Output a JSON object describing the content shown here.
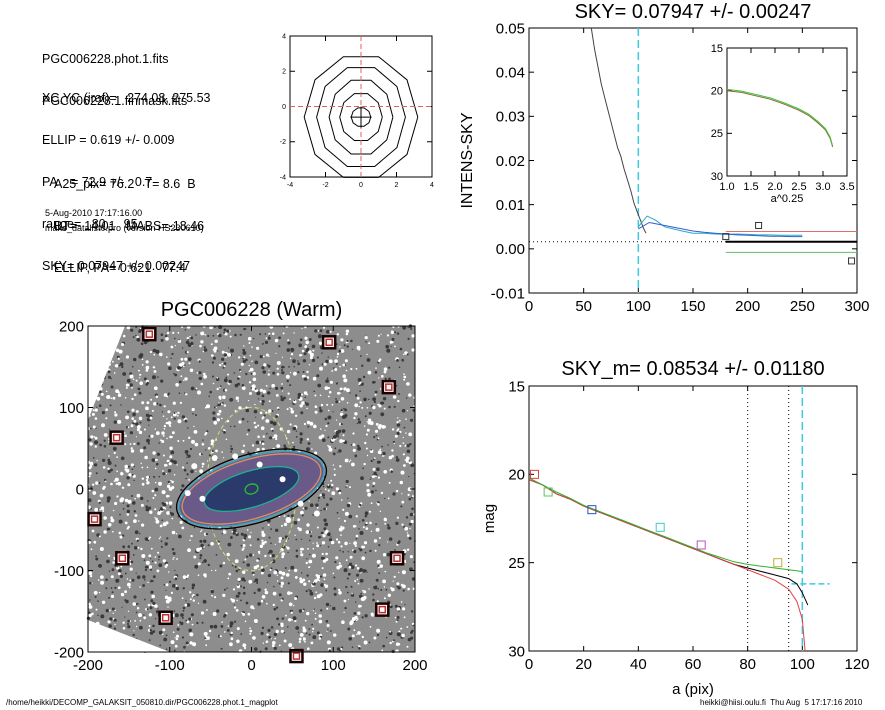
{
  "info": {
    "lines1": [
      "PGC006228.phot.1.fits",
      "PGC006228.1.finmask.fits"
    ],
    "lines2": [
      "XC,YC (iraf)=   274.08, 275.53",
      "ELLIP = 0.619 +/- 0.009",
      "PA    = 72.9 +/-   0.7",
      "range=   80.-   95.",
      "SKY= 0.07947 +/- 0.00247"
    ],
    "lines3": [
      "A25_pix= 76.2   T= 8.6  B",
      "BT=  14.01   MABS=-18.46",
      "ELLIP, PA= 0.621   77.4"
    ],
    "date": "5-Aug-2010 17:17:16.00",
    "program": "make_datalist0.pro (version HS230610)"
  },
  "footer": {
    "path": "/home/heikki/DECOMP_GALAKSIT_050810.dir/PGC006228.phot.1_magplot",
    "user": "heikki@hiisi.oulu.fi  Thu Aug  5 17:17:16 2010"
  },
  "chart_data": [
    {
      "type": "contour",
      "xlim": [
        -4,
        4
      ],
      "ylim": [
        -4,
        4
      ],
      "x_ticks": [
        "-4",
        "-2",
        "0",
        "2",
        "4"
      ],
      "y_ticks": [
        "4",
        "2",
        "0",
        "-2",
        "-4"
      ],
      "center": [
        0,
        -0.6
      ],
      "levels": [
        {
          "rx": 0.55,
          "ry": 0.55
        },
        {
          "rx": 1.2,
          "ry": 1.4
        },
        {
          "rx": 1.8,
          "ry": 2.2
        },
        {
          "rx": 2.5,
          "ry": 2.95
        },
        {
          "rx": 3.2,
          "ry": 3.6
        }
      ],
      "crosshair_color": "#e06060"
    },
    {
      "type": "line",
      "title": "SKY= 0.07947 +/- 0.00247",
      "ylabel": "INTENS-SKY",
      "xlim": [
        0,
        300
      ],
      "ylim": [
        -0.012,
        0.05
      ],
      "x_ticks": [
        "0",
        "50",
        "100",
        "150",
        "200",
        "250",
        "300"
      ],
      "y_ticks": [
        "0.05",
        "0.04",
        "0.03",
        "0.02",
        "0.01",
        "0.00",
        "-0.01"
      ],
      "series": [
        {
          "color": "#444444",
          "points": [
            [
              57,
              0.05
            ],
            [
              60,
              0.045
            ],
            [
              63,
              0.041
            ],
            [
              66,
              0.037
            ],
            [
              69,
              0.034
            ],
            [
              72,
              0.031
            ],
            [
              75,
              0.028
            ],
            [
              78,
              0.025
            ],
            [
              81,
              0.022
            ],
            [
              84,
              0.02
            ],
            [
              87,
              0.017
            ],
            [
              90,
              0.0145
            ],
            [
              93,
              0.012
            ],
            [
              96,
              0.009
            ],
            [
              99,
              0.007
            ],
            [
              102,
              0.005
            ],
            [
              105,
              0.003
            ],
            [
              107,
              0.002
            ]
          ]
        },
        {
          "color": "#2aa8c8",
          "points": [
            [
              100,
              0.0035
            ],
            [
              108,
              0.006
            ],
            [
              116,
              0.005
            ],
            [
              124,
              0.0035
            ],
            [
              132,
              0.003
            ],
            [
              140,
              0.0025
            ],
            [
              150,
              0.002
            ],
            [
              160,
              0.002
            ],
            [
              170,
              0.0018
            ],
            [
              180,
              0.0017
            ],
            [
              190,
              0.0018
            ],
            [
              200,
              0.0017
            ],
            [
              210,
              0.0016
            ],
            [
              220,
              0.0016
            ],
            [
              230,
              0.0015
            ],
            [
              240,
              0.0015
            ],
            [
              250,
              0.0015
            ]
          ]
        },
        {
          "color": "#3060d0",
          "points": [
            [
              100,
              0.003
            ],
            [
              110,
              0.0045
            ],
            [
              120,
              0.004
            ],
            [
              130,
              0.0035
            ],
            [
              140,
              0.003
            ],
            [
              150,
              0.0025
            ],
            [
              160,
              0.0022
            ],
            [
              170,
              0.002
            ],
            [
              180,
              0.0018
            ],
            [
              190,
              0.0016
            ],
            [
              200,
              0.0015
            ],
            [
              210,
              0.0014
            ],
            [
              220,
              0.0013
            ],
            [
              230,
              0.0013
            ],
            [
              240,
              0.0012
            ],
            [
              250,
              0.0012
            ]
          ]
        }
      ],
      "sky_lines": [
        {
          "color": "#e07070",
          "y": 0.0024
        },
        {
          "color": "#000000",
          "y": 0.0
        },
        {
          "color": "#60c060",
          "y": -0.0025
        }
      ],
      "markers": [
        [
          180,
          0.0012
        ],
        [
          210,
          0.0038
        ],
        [
          295,
          -0.0045
        ]
      ],
      "vline_x": 100,
      "inset": {
        "xlabel": "a^0.25",
        "xlim": [
          1.0,
          3.5
        ],
        "ylim": [
          15,
          30
        ],
        "x_ticks": [
          "1.0",
          "1.5",
          "2.0",
          "2.5",
          "3.0",
          "3.5"
        ],
        "y_ticks": [
          "15",
          "20",
          "25",
          "30"
        ],
        "points": [
          [
            1.0,
            20.0
          ],
          [
            1.3,
            20.2
          ],
          [
            1.6,
            20.6
          ],
          [
            1.9,
            21.0
          ],
          [
            2.2,
            21.6
          ],
          [
            2.5,
            22.3
          ],
          [
            2.7,
            22.9
          ],
          [
            2.9,
            23.8
          ],
          [
            3.05,
            24.6
          ],
          [
            3.15,
            25.6
          ],
          [
            3.2,
            26.6
          ]
        ]
      }
    },
    {
      "type": "image",
      "title": "PGC006228 (Warm)",
      "xlim": [
        -200,
        200
      ],
      "ylim": [
        -200,
        200
      ],
      "x_ticks": [
        "-200",
        "-100",
        "0",
        "100",
        "200"
      ],
      "y_ticks": [
        "200",
        "100",
        "0",
        "-100",
        "-200"
      ],
      "galaxy_pa_deg": 17,
      "ellipses": [
        {
          "rx": 95,
          "ry": 42,
          "color": "#000000"
        },
        {
          "rx": 92,
          "ry": 39,
          "color": "#2aa8c8"
        },
        {
          "rx": 88,
          "ry": 36,
          "color": "#e09060"
        },
        {
          "rx": 60,
          "ry": 22,
          "color": "#20b090"
        },
        {
          "rx": 8,
          "ry": 6,
          "color": "#30c030"
        }
      ],
      "outer_ellipse": {
        "rx": 55,
        "ry": 100,
        "color": "#d8dc70"
      },
      "masked_stars": [
        [
          -125,
          190
        ],
        [
          95,
          180
        ],
        [
          168,
          125
        ],
        [
          -165,
          63
        ],
        [
          -192,
          -37
        ],
        [
          -158,
          -85
        ],
        [
          178,
          -85
        ],
        [
          160,
          -148
        ],
        [
          -105,
          -158
        ],
        [
          55,
          -205
        ]
      ]
    },
    {
      "type": "line",
      "title": "SKY_m=  0.08534 +/- 0.01180",
      "xlabel": "a (pix)",
      "ylabel": "mag",
      "xlim": [
        0,
        120
      ],
      "ylim": [
        15,
        30
      ],
      "x_ticks": [
        "0",
        "20",
        "40",
        "60",
        "80",
        "100",
        "120"
      ],
      "y_ticks": [
        "15",
        "20",
        "25",
        "30"
      ],
      "series": [
        {
          "color": "#000000",
          "points": [
            [
              0,
              20.3
            ],
            [
              5,
              20.6
            ],
            [
              10,
              21.1
            ],
            [
              15,
              21.4
            ],
            [
              20,
              21.8
            ],
            [
              25,
              22.1
            ],
            [
              30,
              22.4
            ],
            [
              35,
              22.7
            ],
            [
              40,
              23.0
            ],
            [
              45,
              23.3
            ],
            [
              50,
              23.6
            ],
            [
              55,
              23.9
            ],
            [
              60,
              24.2
            ],
            [
              65,
              24.5
            ],
            [
              70,
              24.8
            ],
            [
              75,
              25.1
            ],
            [
              80,
              25.3
            ],
            [
              85,
              25.5
            ],
            [
              90,
              25.7
            ],
            [
              95,
              25.9
            ],
            [
              98,
              26.2
            ],
            [
              100,
              26.7
            ],
            [
              102,
              27.4
            ]
          ]
        },
        {
          "color": "#e04040",
          "points": [
            [
              0,
              20.3
            ],
            [
              5,
              20.6
            ],
            [
              10,
              21.1
            ],
            [
              15,
              21.4
            ],
            [
              20,
              21.8
            ],
            [
              25,
              22.1
            ],
            [
              30,
              22.4
            ],
            [
              35,
              22.7
            ],
            [
              40,
              23.0
            ],
            [
              45,
              23.3
            ],
            [
              50,
              23.6
            ],
            [
              55,
              23.9
            ],
            [
              60,
              24.2
            ],
            [
              65,
              24.5
            ],
            [
              70,
              24.8
            ],
            [
              75,
              25.1
            ],
            [
              80,
              25.4
            ],
            [
              85,
              25.7
            ],
            [
              90,
              26.0
            ],
            [
              95,
              26.5
            ],
            [
              98,
              27.2
            ],
            [
              100,
              28.2
            ],
            [
              101,
              30.0
            ]
          ]
        },
        {
          "color": "#30b030",
          "points": [
            [
              0,
              20.2
            ],
            [
              5,
              20.6
            ],
            [
              10,
              21.0
            ],
            [
              15,
              21.35
            ],
            [
              20,
              21.75
            ],
            [
              25,
              22.05
            ],
            [
              30,
              22.35
            ],
            [
              35,
              22.65
            ],
            [
              40,
              22.95
            ],
            [
              45,
              23.25
            ],
            [
              50,
              23.55
            ],
            [
              55,
              23.85
            ],
            [
              60,
              24.15
            ],
            [
              65,
              24.45
            ],
            [
              70,
              24.7
            ],
            [
              75,
              24.95
            ],
            [
              80,
              25.1
            ],
            [
              85,
              25.2
            ],
            [
              90,
              25.3
            ],
            [
              95,
              25.4
            ],
            [
              100,
              25.5
            ]
          ]
        }
      ],
      "markers": [
        {
          "x": 2,
          "y": 20.0,
          "color": "#e04040"
        },
        {
          "x": 7,
          "y": 21.0,
          "color": "#60c060"
        },
        {
          "x": 23,
          "y": 22.0,
          "color": "#3050c0"
        },
        {
          "x": 48,
          "y": 23.0,
          "color": "#40c8c8"
        },
        {
          "x": 63,
          "y": 24.0,
          "color": "#c050c0"
        },
        {
          "x": 91,
          "y": 25.0,
          "color": "#c0b040"
        }
      ],
      "vlines_dotted": [
        80,
        95
      ],
      "vline_dashed": 100,
      "sky_mag": 26.2
    }
  ]
}
